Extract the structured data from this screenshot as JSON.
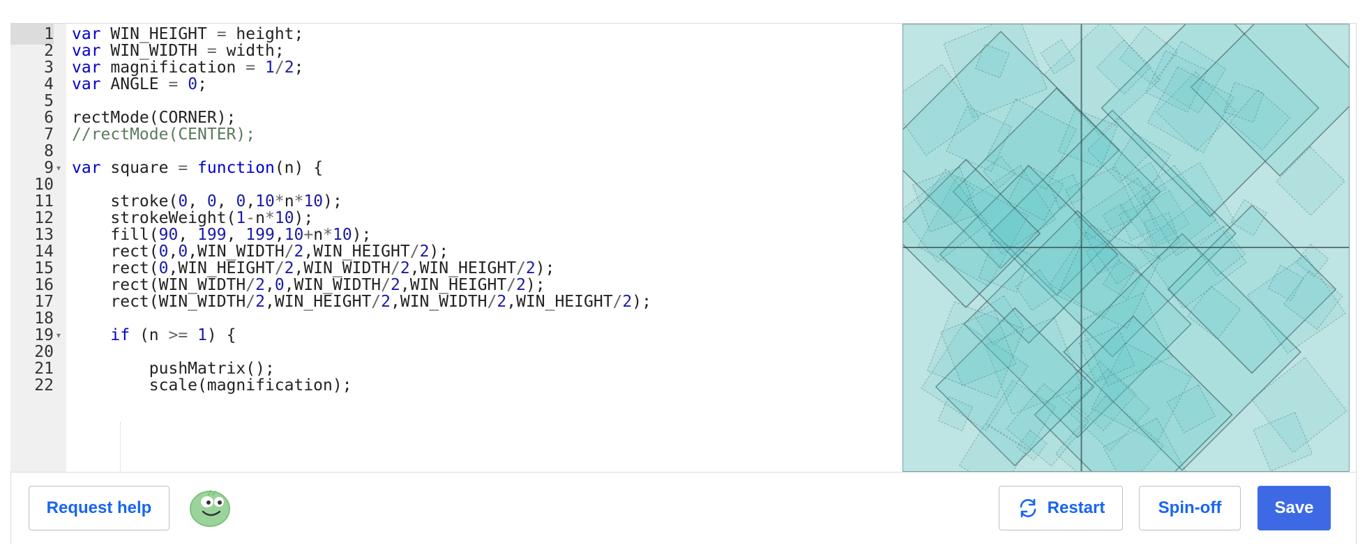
{
  "editor": {
    "active_line": 1,
    "lines": [
      {
        "n": "1",
        "text": "var WIN_HEIGHT = height;"
      },
      {
        "n": "2",
        "text": "var WIN_WIDTH = width;"
      },
      {
        "n": "3",
        "text": "var magnification = 1/2;"
      },
      {
        "n": "4",
        "text": "var ANGLE = 0;"
      },
      {
        "n": "5",
        "text": ""
      },
      {
        "n": "6",
        "text": "rectMode(CORNER);"
      },
      {
        "n": "7",
        "text": "//rectMode(CENTER);"
      },
      {
        "n": "8",
        "text": ""
      },
      {
        "n": "9",
        "text": "var square = function(n) {"
      },
      {
        "n": "10",
        "text": ""
      },
      {
        "n": "11",
        "text": "    stroke(0, 0, 0,10*n*10);"
      },
      {
        "n": "12",
        "text": "    strokeWeight(1-n*10);"
      },
      {
        "n": "13",
        "text": "    fill(90, 199, 199,10+n*10);"
      },
      {
        "n": "14",
        "text": "    rect(0,0,WIN_WIDTH/2,WIN_HEIGHT/2);"
      },
      {
        "n": "15",
        "text": "    rect(0,WIN_HEIGHT/2,WIN_WIDTH/2,WIN_HEIGHT/2);"
      },
      {
        "n": "16",
        "text": "    rect(WIN_WIDTH/2,0,WIN_WIDTH/2,WIN_HEIGHT/2);"
      },
      {
        "n": "17",
        "text": "    rect(WIN_WIDTH/2,WIN_HEIGHT/2,WIN_WIDTH/2,WIN_HEIGHT/2);"
      },
      {
        "n": "18",
        "text": ""
      },
      {
        "n": "19",
        "text": "    if (n >= 1) {"
      },
      {
        "n": "20",
        "text": ""
      },
      {
        "n": "21",
        "text": "        pushMatrix();"
      },
      {
        "n": "22",
        "text": "        scale(magnification);"
      }
    ]
  },
  "canvas": {
    "background_color": "#bee4e3",
    "fill_color": "#5ac7c7",
    "stroke_color": "#33474a"
  },
  "toolbar": {
    "request_help_label": "Request help",
    "restart_label": "Restart",
    "spinoff_label": "Spin-off",
    "save_label": "Save",
    "restart_icon": "refresh-icon",
    "avatar_icon": "green-blob-avatar-icon"
  },
  "colors": {
    "accent": "#1865f2",
    "primary_button": "#3d6ae4",
    "keyword": "#0000cc",
    "number": "#1a1aa6",
    "comment": "#5c7a5c"
  }
}
